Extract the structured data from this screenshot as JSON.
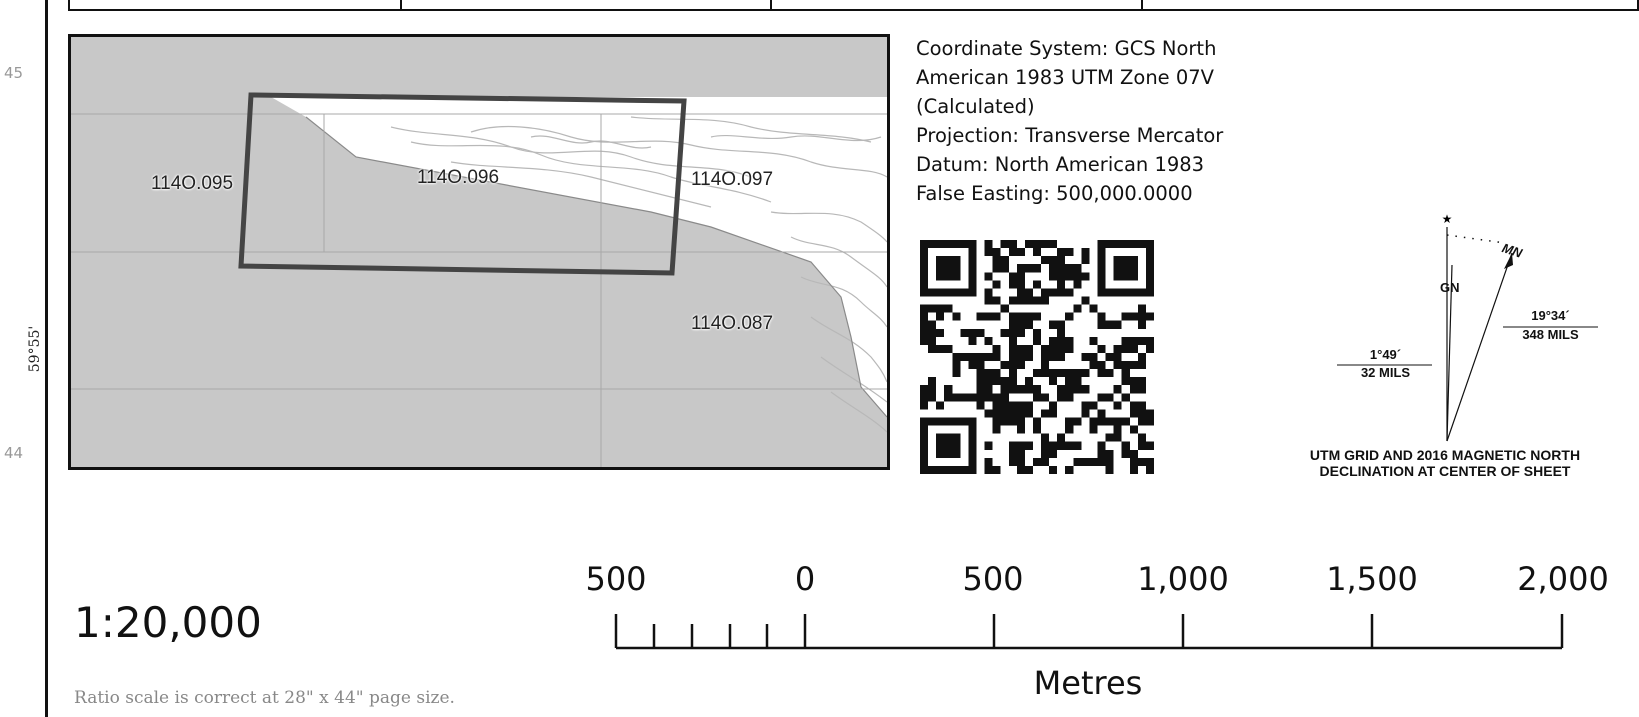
{
  "frame": {
    "left_ticks": [
      "45",
      "44"
    ],
    "lat_label": "59°55'"
  },
  "inset_map": {
    "labels": [
      "114O.095",
      "114O.096",
      "114O.097",
      "114O.087"
    ],
    "colors": {
      "water": "#c8c8c8",
      "land": "#ffffff",
      "contour": "#b0b0b0",
      "highlight_box": "#444444"
    }
  },
  "coordinate_info": {
    "lines": [
      "Coordinate System: GCS North",
      "American 1983 UTM Zone 07V",
      "(Calculated)",
      "Projection: Transverse Mercator",
      "Datum: North American 1983",
      "False Easting: 500,000.0000"
    ]
  },
  "qr_code": {
    "icon": "qr-code-icon"
  },
  "declination": {
    "gn_label": "GN",
    "mn_label": "MN",
    "grid_angle": "1°49´",
    "grid_mils": "32 MILS",
    "mag_angle": "19°34´",
    "mag_mils": "348 MILS",
    "title_line1": "UTM GRID AND 2016 MAGNETIC NORTH",
    "title_line2": "DECLINATION AT CENTER OF SHEET"
  },
  "scale": {
    "ratio": "1:20,000",
    "note": "Ratio scale is correct at 28\" x 44\" page size.",
    "bar_labels": [
      "500",
      "0",
      "500",
      "1,000",
      "1,500",
      "2,000"
    ],
    "unit": "Metres"
  }
}
